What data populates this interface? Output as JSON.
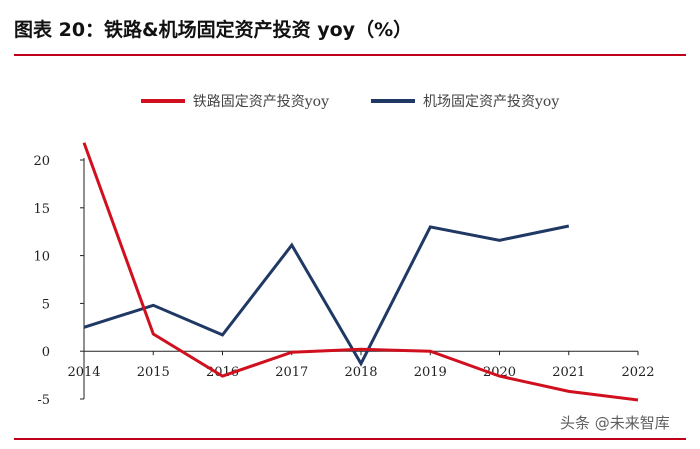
{
  "figure": {
    "title": "图表 20：铁路&机场固定资产投资 yoy（%）",
    "watermark": "头条 @未来智库"
  },
  "chart_data": {
    "type": "line",
    "title": "",
    "xlabel": "",
    "ylabel": "",
    "x": [
      "2014",
      "2015",
      "2016",
      "2017",
      "2018",
      "2019",
      "2020",
      "2021",
      "2022"
    ],
    "ylim": [
      -5,
      20
    ],
    "yticks": [
      -5,
      0,
      5,
      10,
      15,
      20
    ],
    "grid": false,
    "legend_position": "top-center",
    "series": [
      {
        "name": "铁路固定资产投资yoy",
        "color": "#d0101e",
        "values": [
          21.8,
          1.8,
          -2.6,
          -0.1,
          0.2,
          0.0,
          -2.6,
          -4.2,
          -5.1
        ]
      },
      {
        "name": "机场固定资产投资yoy",
        "color": "#1f3864",
        "values": [
          2.5,
          4.8,
          1.7,
          11.1,
          -1.3,
          13.0,
          11.6,
          13.1,
          null
        ]
      }
    ]
  }
}
